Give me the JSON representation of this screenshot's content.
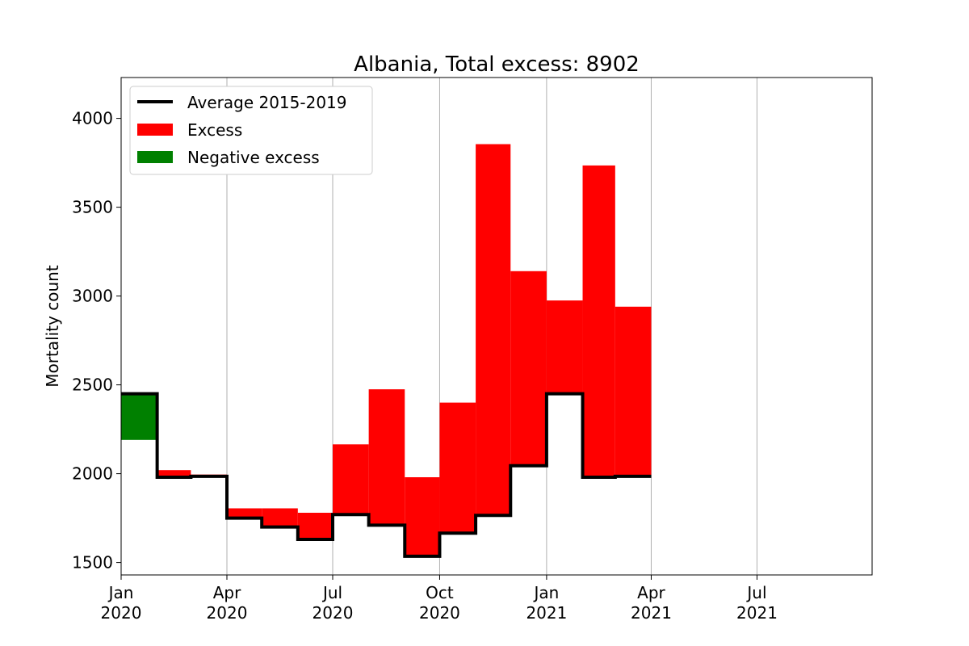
{
  "chart_data": {
    "type": "bar",
    "title": "Albania, Total excess: 8902",
    "xlabel": "",
    "ylabel": "Mortality count",
    "ylim": [
      1430,
      4230
    ],
    "yticks": [
      1500,
      2000,
      2500,
      3000,
      3500,
      4000
    ],
    "xlim": [
      "2020-01-01",
      "2021-10-08"
    ],
    "xticks": [
      {
        "date": "2020-01-01",
        "line1": "Jan",
        "line2": "2020"
      },
      {
        "date": "2020-04-01",
        "line1": "Apr",
        "line2": "2020"
      },
      {
        "date": "2020-07-01",
        "line1": "Jul",
        "line2": "2020"
      },
      {
        "date": "2020-10-01",
        "line1": "Oct",
        "line2": "2020"
      },
      {
        "date": "2021-01-01",
        "line1": "Jan",
        "line2": "2021"
      },
      {
        "date": "2021-04-01",
        "line1": "Apr",
        "line2": "2021"
      },
      {
        "date": "2021-07-01",
        "line1": "Jul",
        "line2": "2021"
      }
    ],
    "grid": "x",
    "legend_position": "upper left",
    "legend": [
      {
        "label": "Average 2015-2019",
        "kind": "line",
        "color": "#000000"
      },
      {
        "label": "Excess",
        "kind": "patch",
        "color": "#ff0000"
      },
      {
        "label": "Negative excess",
        "kind": "patch",
        "color": "#008000"
      }
    ],
    "excess_color": "#ff0000",
    "negative_color": "#008000",
    "baseline_color": "#000000",
    "months": [
      {
        "start": "2020-01-01",
        "end": "2020-02-01",
        "average": 2450,
        "actual": 2190
      },
      {
        "start": "2020-02-01",
        "end": "2020-03-01",
        "average": 1980,
        "actual": 2020
      },
      {
        "start": "2020-03-01",
        "end": "2020-04-01",
        "average": 1985,
        "actual": 1995
      },
      {
        "start": "2020-04-01",
        "end": "2020-05-01",
        "average": 1750,
        "actual": 1805
      },
      {
        "start": "2020-05-01",
        "end": "2020-06-01",
        "average": 1700,
        "actual": 1805
      },
      {
        "start": "2020-06-01",
        "end": "2020-07-01",
        "average": 1630,
        "actual": 1780
      },
      {
        "start": "2020-07-01",
        "end": "2020-08-01",
        "average": 1770,
        "actual": 2165
      },
      {
        "start": "2020-08-01",
        "end": "2020-09-01",
        "average": 1710,
        "actual": 2475
      },
      {
        "start": "2020-09-01",
        "end": "2020-10-01",
        "average": 1535,
        "actual": 1980
      },
      {
        "start": "2020-10-01",
        "end": "2020-11-01",
        "average": 1665,
        "actual": 2400
      },
      {
        "start": "2020-11-01",
        "end": "2020-12-01",
        "average": 1765,
        "actual": 3855
      },
      {
        "start": "2020-12-01",
        "end": "2021-01-01",
        "average": 2045,
        "actual": 3140
      },
      {
        "start": "2021-01-01",
        "end": "2021-02-01",
        "average": 2450,
        "actual": 2975
      },
      {
        "start": "2021-02-01",
        "end": "2021-03-01",
        "average": 1980,
        "actual": 3735
      },
      {
        "start": "2021-03-01",
        "end": "2021-04-01",
        "average": 1985,
        "actual": 2940
      }
    ]
  }
}
